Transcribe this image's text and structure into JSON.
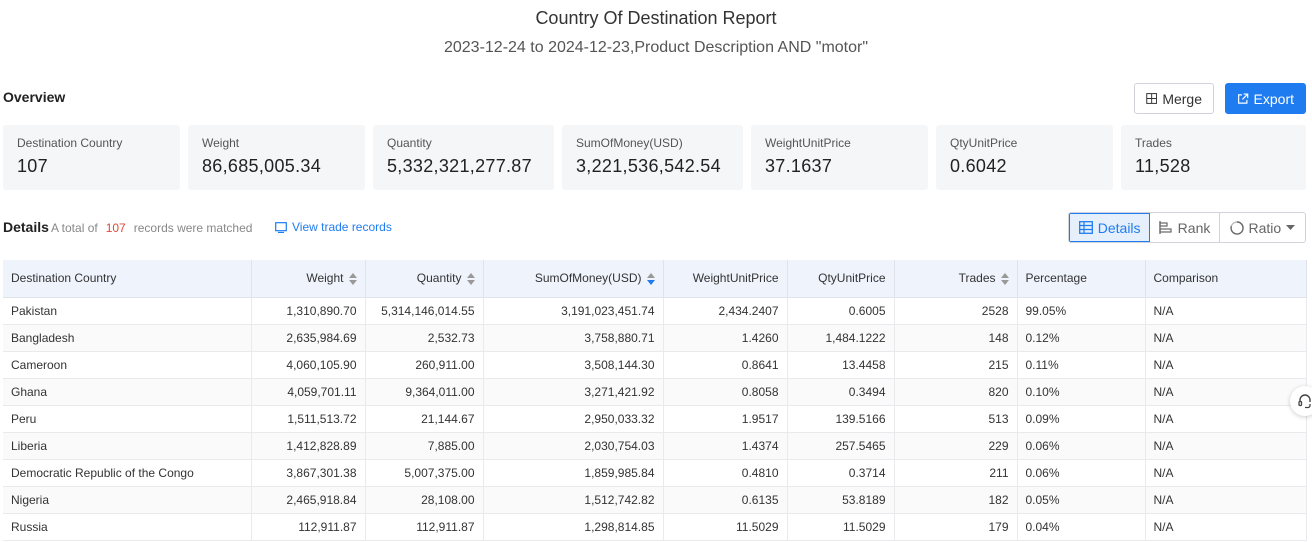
{
  "report": {
    "title": "Country Of Destination Report",
    "subtitle": "2023-12-24 to 2024-12-23,Product Description AND \"motor\""
  },
  "overview": {
    "label": "Overview",
    "merge_label": "Merge",
    "export_label": "Export",
    "cards": [
      {
        "label": "Destination Country",
        "value": "107"
      },
      {
        "label": "Weight",
        "value": "86,685,005.34"
      },
      {
        "label": "Quantity",
        "value": "5,332,321,277.87"
      },
      {
        "label": "SumOfMoney(USD)",
        "value": "3,221,536,542.54"
      },
      {
        "label": "WeightUnitPrice",
        "value": "37.1637"
      },
      {
        "label": "QtyUnitPrice",
        "value": "0.6042"
      },
      {
        "label": "Trades",
        "value": "11,528"
      }
    ]
  },
  "details": {
    "label": "Details",
    "summary_prefix": "A total of",
    "count": "107",
    "summary_suffix": "records were matched",
    "view_link": "View trade records",
    "views": {
      "details": "Details",
      "rank": "Rank",
      "ratio": "Ratio"
    }
  },
  "table": {
    "headers": {
      "country": "Destination Country",
      "weight": "Weight",
      "quantity": "Quantity",
      "money": "SumOfMoney(USD)",
      "wup": "WeightUnitPrice",
      "qup": "QtyUnitPrice",
      "trades": "Trades",
      "percentage": "Percentage",
      "comparison": "Comparison"
    },
    "rows": [
      [
        "Pakistan",
        "1,310,890.70",
        "5,314,146,014.55",
        "3,191,023,451.74",
        "2,434.2407",
        "0.6005",
        "2528",
        "99.05%",
        "N/A"
      ],
      [
        "Bangladesh",
        "2,635,984.69",
        "2,532.73",
        "3,758,880.71",
        "1.4260",
        "1,484.1222",
        "148",
        "0.12%",
        "N/A"
      ],
      [
        "Cameroon",
        "4,060,105.90",
        "260,911.00",
        "3,508,144.30",
        "0.8641",
        "13.4458",
        "215",
        "0.11%",
        "N/A"
      ],
      [
        "Ghana",
        "4,059,701.11",
        "9,364,011.00",
        "3,271,421.92",
        "0.8058",
        "0.3494",
        "820",
        "0.10%",
        "N/A"
      ],
      [
        "Peru",
        "1,511,513.72",
        "21,144.67",
        "2,950,033.32",
        "1.9517",
        "139.5166",
        "513",
        "0.09%",
        "N/A"
      ],
      [
        "Liberia",
        "1,412,828.89",
        "7,885.00",
        "2,030,754.03",
        "1.4374",
        "257.5465",
        "229",
        "0.06%",
        "N/A"
      ],
      [
        "Democratic Republic of the Congo",
        "3,867,301.38",
        "5,007,375.00",
        "1,859,985.84",
        "0.4810",
        "0.3714",
        "211",
        "0.06%",
        "N/A"
      ],
      [
        "Nigeria",
        "2,465,918.84",
        "28,108.00",
        "1,512,742.82",
        "0.6135",
        "53.8189",
        "182",
        "0.05%",
        "N/A"
      ],
      [
        "Russia",
        "112,911.87",
        "112,911.87",
        "1,298,814.85",
        "11.5029",
        "11.5029",
        "179",
        "0.04%",
        "N/A"
      ]
    ]
  },
  "colors": {
    "accent": "#1f7cf0",
    "count_highlight": "#e4473a",
    "header_bg": "#eef3fc",
    "card_bg": "#f5f6f8"
  }
}
